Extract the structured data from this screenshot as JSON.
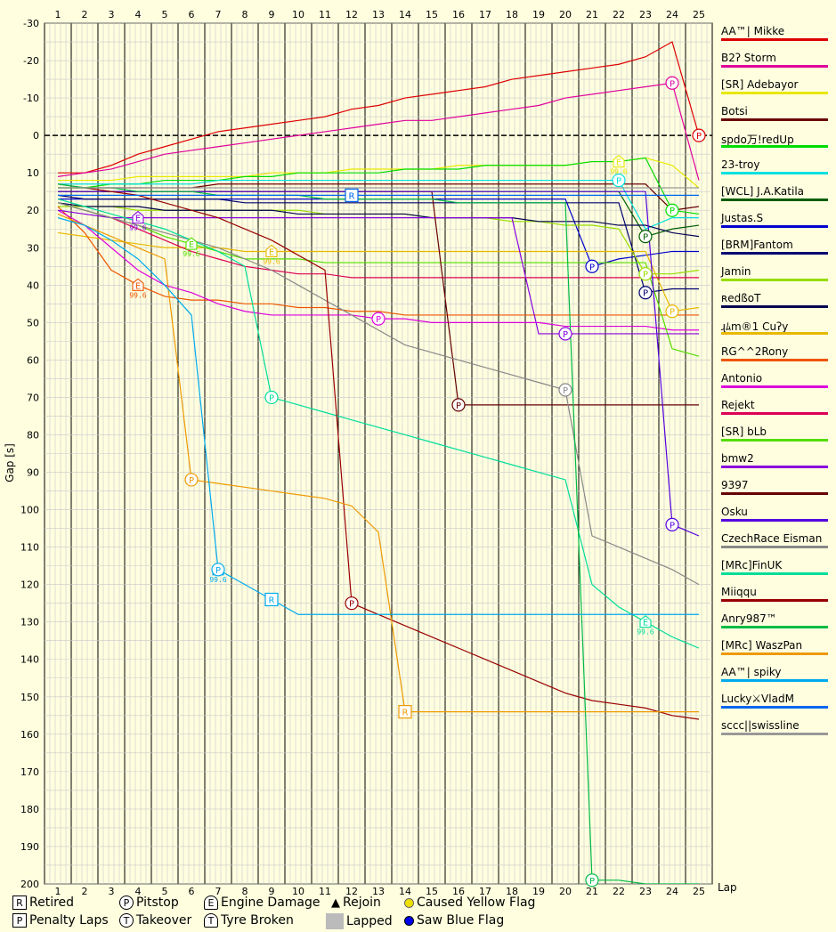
{
  "chart_data": {
    "type": "line",
    "title": "",
    "xlabel": "Lap",
    "ylabel": "Gap [s]",
    "x": [
      1,
      2,
      3,
      4,
      5,
      6,
      7,
      8,
      9,
      10,
      11,
      12,
      13,
      14,
      15,
      16,
      17,
      18,
      19,
      20,
      21,
      22,
      23,
      24,
      25
    ],
    "ylim": [
      -30,
      200
    ],
    "yticks": [
      -30,
      -20,
      -10,
      0,
      10,
      20,
      30,
      40,
      50,
      60,
      70,
      80,
      90,
      100,
      110,
      120,
      130,
      140,
      150,
      160,
      170,
      180,
      190,
      200
    ],
    "y_inverted": true,
    "grid": true,
    "legend_position": "right",
    "series": [
      {
        "name": "AA™| Mikke",
        "color": "#dd0000",
        "values": [
          10,
          10,
          8,
          5,
          3,
          1,
          -1,
          -2,
          -3,
          -4,
          -5,
          -7,
          -8,
          -10,
          -11,
          -12,
          -13,
          -15,
          -16,
          -17,
          -18,
          -19,
          -21,
          -25,
          0
        ],
        "events": [
          {
            "lap": 25,
            "type": "P"
          }
        ]
      },
      {
        "name": "B2ʔ Storm",
        "color": "#e0009a",
        "values": [
          11,
          10,
          9,
          7,
          5,
          4,
          3,
          2,
          1,
          0,
          -1,
          -2,
          -3,
          -4,
          -4,
          -5,
          -6,
          -7,
          -8,
          -10,
          -11,
          -12,
          -13,
          -14,
          12
        ],
        "events": [
          {
            "lap": 24,
            "type": "P"
          }
        ]
      },
      {
        "name": "[SR] Adebayor",
        "color": "#e8e800",
        "values": [
          12,
          12,
          12,
          11,
          11,
          11,
          11,
          11,
          10,
          10,
          10,
          9,
          9,
          9,
          9,
          8,
          8,
          8,
          8,
          8,
          7,
          7,
          6,
          8,
          14
        ],
        "events": [
          {
            "lap": 22,
            "type": "E",
            "label": "99.6"
          }
        ]
      },
      {
        "name": "Botsi",
        "color": "#6b0000",
        "values": [
          14,
          14,
          14,
          14,
          14,
          14,
          13,
          13,
          13,
          13,
          13,
          13,
          13,
          13,
          13,
          13,
          13,
          13,
          13,
          13,
          13,
          13,
          13,
          20,
          19
        ],
        "events": []
      },
      {
        "name": "spdo万!redUp",
        "color": "#00dd00",
        "values": [
          14,
          14,
          13,
          13,
          12,
          12,
          12,
          11,
          11,
          10,
          10,
          10,
          10,
          9,
          9,
          9,
          8,
          8,
          8,
          8,
          7,
          7,
          6,
          20,
          21
        ],
        "events": [
          {
            "lap": 24,
            "type": "P"
          }
        ]
      },
      {
        "name": "23-troy",
        "color": "#00e0e0",
        "values": [
          13,
          13,
          13,
          13,
          13,
          13,
          12,
          12,
          12,
          12,
          12,
          12,
          12,
          12,
          12,
          12,
          12,
          12,
          12,
          12,
          12,
          12,
          25,
          22,
          22
        ],
        "events": [
          {
            "lap": 22,
            "type": "P"
          }
        ]
      },
      {
        "name": "[WCL] J.A.Katila",
        "color": "#005e00",
        "values": [
          15,
          15,
          15,
          15,
          15,
          15,
          15,
          15,
          15,
          15,
          15,
          15,
          15,
          15,
          15,
          15,
          15,
          15,
          15,
          15,
          15,
          15,
          27,
          25,
          24
        ],
        "events": [
          {
            "lap": 23,
            "type": "P"
          }
        ]
      },
      {
        "name": "Justas.S",
        "color": "#0000cc",
        "values": [
          17,
          17,
          17,
          17,
          17,
          17,
          17,
          17,
          17,
          17,
          17,
          17,
          17,
          17,
          17,
          17,
          17,
          17,
          17,
          17,
          35,
          33,
          32,
          31,
          31
        ],
        "events": [
          {
            "lap": 21,
            "type": "P"
          }
        ]
      },
      {
        "name": "[BRM]Fantom",
        "color": "#000070",
        "values": [
          16,
          17,
          17,
          17,
          17,
          17,
          17,
          18,
          18,
          18,
          18,
          18,
          18,
          18,
          18,
          18,
          18,
          18,
          18,
          18,
          18,
          18,
          42,
          41,
          41
        ],
        "events": [
          {
            "lap": 23,
            "type": "P"
          }
        ]
      },
      {
        "name": "Jamin",
        "color": "#99dd00",
        "values": [
          19,
          19,
          19,
          20,
          20,
          20,
          20,
          20,
          20,
          20,
          21,
          21,
          21,
          21,
          22,
          22,
          22,
          23,
          23,
          24,
          24,
          25,
          37,
          37,
          36
        ],
        "events": [
          {
            "lap": 23,
            "type": "P"
          }
        ]
      },
      {
        "name": "ʀedßoT",
        "color": "#000050",
        "values": [
          18,
          19,
          19,
          19,
          20,
          20,
          20,
          20,
          20,
          21,
          21,
          21,
          21,
          21,
          22,
          22,
          22,
          22,
          23,
          23,
          23,
          24,
          24,
          26,
          27
        ],
        "events": []
      },
      {
        "name": "ɻﾑm®1 Cuʔy",
        "color": "#e8b800",
        "values": [
          26,
          27,
          28,
          29,
          30,
          30,
          30,
          31,
          31,
          31,
          31,
          31,
          31,
          31,
          31,
          31,
          31,
          31,
          31,
          31,
          31,
          31,
          31,
          47,
          46
        ],
        "events": [
          {
            "lap": 9,
            "type": "E",
            "label": "99.6"
          },
          {
            "lap": 24,
            "type": "P"
          }
        ]
      },
      {
        "name": "RG^^2Rony",
        "color": "#ee5500",
        "values": [
          19,
          26,
          36,
          40,
          43,
          44,
          44,
          45,
          45,
          46,
          46,
          47,
          47,
          48,
          48,
          48,
          48,
          48,
          48,
          48,
          48,
          48,
          48,
          48,
          48
        ],
        "events": [
          {
            "lap": 4,
            "type": "E",
            "label": "99.6"
          }
        ]
      },
      {
        "name": "Antonio",
        "color": "#dd00dd",
        "values": [
          20,
          24,
          30,
          36,
          40,
          42,
          45,
          47,
          48,
          48,
          48,
          48,
          49,
          49,
          50,
          50,
          50,
          50,
          50,
          51,
          51,
          51,
          51,
          52,
          52
        ],
        "events": [
          {
            "lap": 13,
            "type": "P"
          }
        ]
      },
      {
        "name": "Rejekt",
        "color": "#dd0055",
        "values": [
          18,
          20,
          22,
          25,
          28,
          31,
          33,
          35,
          36,
          37,
          37,
          38,
          38,
          38,
          38,
          38,
          38,
          38,
          38,
          38,
          38,
          38,
          38,
          38,
          38
        ],
        "events": []
      },
      {
        "name": "[SR] bLb",
        "color": "#55dd00",
        "values": [
          18,
          20,
          22,
          24,
          27,
          29,
          31,
          33,
          33,
          33,
          34,
          34,
          34,
          34,
          34,
          34,
          34,
          34,
          34,
          34,
          34,
          34,
          34,
          57,
          59
        ],
        "events": [
          {
            "lap": 6,
            "type": "E",
            "label": "99.6"
          }
        ]
      },
      {
        "name": "bmw2",
        "color": "#8800dd",
        "values": [
          20,
          21,
          22,
          22,
          22,
          22,
          22,
          22,
          22,
          22,
          22,
          22,
          22,
          22,
          22,
          22,
          22,
          22,
          53,
          53,
          53,
          53,
          53,
          53,
          53
        ],
        "events": [
          {
            "lap": 4,
            "type": "E",
            "label": "99.6"
          },
          {
            "lap": 20,
            "type": "P"
          }
        ]
      },
      {
        "name": "9397",
        "color": "#660000",
        "values": [
          15,
          15,
          15,
          15,
          15,
          15,
          15,
          15,
          15,
          15,
          15,
          15,
          15,
          15,
          15,
          72,
          72,
          72,
          72,
          72,
          72,
          72,
          72,
          72,
          72
        ],
        "events": [
          {
            "lap": 16,
            "type": "P"
          }
        ]
      },
      {
        "name": "Osku",
        "color": "#5500dd",
        "values": [
          15,
          15,
          15,
          15,
          15,
          15,
          15,
          15,
          15,
          15,
          15,
          15,
          15,
          15,
          15,
          15,
          15,
          15,
          15,
          15,
          15,
          15,
          15,
          104,
          107
        ],
        "events": [
          {
            "lap": 24,
            "type": "P"
          }
        ]
      },
      {
        "name": "CzechRace  Eisman",
        "color": "#888888",
        "values": [
          18,
          20,
          22,
          24,
          26,
          28,
          30,
          33,
          36,
          40,
          44,
          48,
          52,
          56,
          58,
          60,
          62,
          64,
          66,
          68,
          107,
          110,
          113,
          116,
          120
        ],
        "events": [
          {
            "lap": 20,
            "type": "P"
          }
        ]
      },
      {
        "name": "[MRc]FinUK",
        "color": "#00dd99",
        "values": [
          17,
          19,
          21,
          23,
          25,
          28,
          31,
          35,
          70,
          72,
          74,
          76,
          78,
          80,
          82,
          84,
          86,
          88,
          90,
          92,
          120,
          126,
          130,
          134,
          137
        ],
        "events": [
          {
            "lap": 9,
            "type": "P"
          },
          {
            "lap": 23,
            "type": "E",
            "label": "99.6"
          }
        ]
      },
      {
        "name": "Miiqqu",
        "color": "#990000",
        "values": [
          13,
          14,
          15,
          16,
          18,
          20,
          22,
          25,
          28,
          32,
          36,
          125,
          128,
          131,
          134,
          137,
          140,
          143,
          146,
          149,
          151,
          152,
          153,
          155,
          156
        ],
        "events": [
          {
            "lap": 12,
            "type": "P"
          }
        ]
      },
      {
        "name": "Anry987™",
        "color": "#00bb44",
        "values": [
          13,
          14,
          14,
          15,
          15,
          15,
          16,
          16,
          16,
          16,
          17,
          17,
          17,
          17,
          17,
          18,
          18,
          18,
          18,
          18,
          199,
          199,
          200,
          200,
          200
        ],
        "events": [
          {
            "lap": 21,
            "type": "P"
          }
        ]
      },
      {
        "name": "[MRc] WaszPan",
        "color": "#ee9900",
        "values": [
          21,
          24,
          27,
          30,
          33,
          92,
          93,
          94,
          95,
          96,
          97,
          99,
          106,
          154,
          154,
          154,
          154,
          154,
          154,
          154,
          154,
          154,
          154,
          154,
          154
        ],
        "events": [
          {
            "lap": 6,
            "type": "P"
          },
          {
            "lap": 14,
            "type": "R"
          }
        ]
      },
      {
        "name": "AA™| spiky",
        "color": "#00aaee",
        "values": [
          22,
          24,
          28,
          33,
          40,
          48,
          116,
          120,
          124,
          128,
          128,
          128,
          128,
          128,
          128,
          128,
          128,
          128,
          128,
          128,
          128,
          128,
          128,
          128,
          128
        ],
        "events": [
          {
            "lap": 7,
            "type": "E",
            "label": "99.6"
          },
          {
            "lap": 7,
            "type": "P"
          },
          {
            "lap": 9,
            "type": "R"
          }
        ]
      },
      {
        "name": "Lucky⚔VladM",
        "color": "#0066ee",
        "values": [
          16,
          16,
          16,
          16,
          16,
          16,
          16,
          16,
          16,
          16,
          16,
          16,
          16,
          16,
          16,
          16,
          16,
          16,
          16,
          16,
          16,
          16,
          16,
          16,
          16
        ],
        "events": [
          {
            "lap": 12,
            "type": "R"
          }
        ]
      },
      {
        "name": "sccc||swissline",
        "color": "#999999",
        "values": [
          14,
          14,
          14,
          14,
          14,
          14,
          14,
          14,
          14,
          14,
          14,
          14,
          14,
          14,
          14,
          14,
          14,
          14,
          14,
          14,
          14,
          14,
          14,
          14,
          14
        ],
        "events": []
      }
    ]
  },
  "key": {
    "retired": "Retired",
    "pitstop": "Pitstop",
    "engine": "Engine Damage",
    "rejoin": "Rejoin",
    "yellow": "Caused Yellow Flag",
    "penalty": "Penalty Laps",
    "takeover": "Takeover",
    "tyre": "Tyre Broken",
    "lapped": "Lapped",
    "blue": "Saw Blue Flag"
  }
}
